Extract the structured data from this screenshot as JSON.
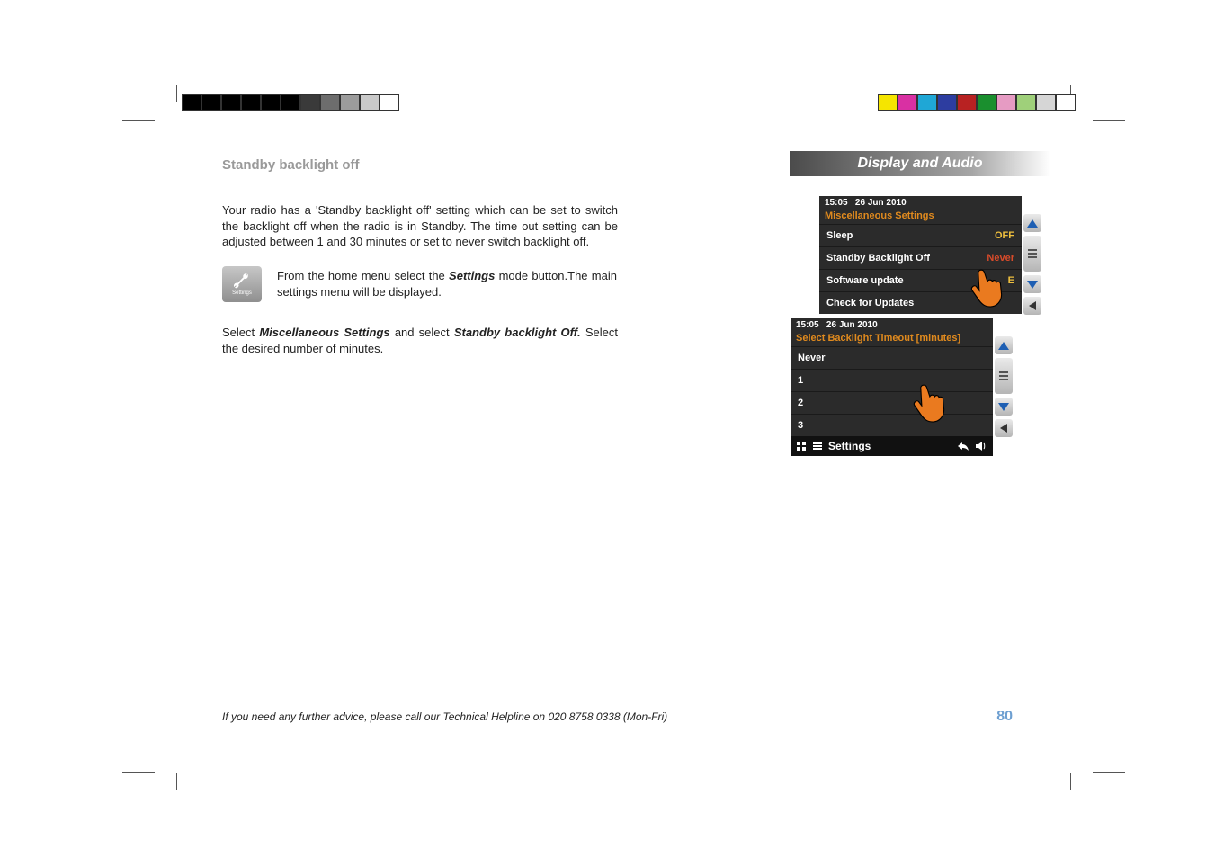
{
  "regbars": {
    "left_colors": [
      "#000000",
      "#000000",
      "#000000",
      "#000000",
      "#000000",
      "#000000",
      "#3a3a3a",
      "#6d6d6d",
      "#9c9c9c",
      "#c9c9c9",
      "#ffffff"
    ],
    "right_colors": [
      "#f5e500",
      "#d930a3",
      "#1fa7d6",
      "#2d3da0",
      "#b82222",
      "#1a8f2e",
      "#e69bc3",
      "#9fd07a",
      "#d6d6d6",
      "#ffffff"
    ]
  },
  "section_title": "Standby backlight off",
  "banner_title": "Display and Audio",
  "paragraphs": {
    "p1": "Your radio has a 'Standby backlight off' setting which can be set to switch the backlight off when the radio is in Standby. The time out setting can be adjusted between 1 and 30 minutes or set to never switch backlight off.",
    "p2_pre": "From the home menu select the ",
    "p2_bold": "Settings",
    "p2_post": " mode button.The main settings menu will be displayed.",
    "p3_pre": "Select ",
    "p3_b1": "Miscellaneous Settings",
    "p3_mid": " and select ",
    "p3_b2": "Standby backlight Off.",
    "p3_post": " Select the desired number of minutes."
  },
  "settings_icon_label": "Settings",
  "screen1": {
    "time": "15:05",
    "date": "26 Jun 2010",
    "heading": "Miscellaneous Settings",
    "rows": [
      {
        "label": "Sleep",
        "value": "OFF",
        "value_class": "val"
      },
      {
        "label": "Standby Backlight Off",
        "value": "Never",
        "value_class": "val never"
      },
      {
        "label": "Software update",
        "value": "E",
        "value_class": "val"
      },
      {
        "label": "Check for Updates",
        "value": "",
        "value_class": ""
      }
    ]
  },
  "screen2": {
    "time": "15:05",
    "date": "26 Jun 2010",
    "heading": "Select Backlight Timeout [minutes]",
    "rows": [
      {
        "label": "Never"
      },
      {
        "label": "1"
      },
      {
        "label": "2"
      },
      {
        "label": "3"
      }
    ],
    "footer_label": "Settings"
  },
  "helpline": "If you need any further advice, please call our Technical Helpline on 020 8758 0338 (Mon-Fri)",
  "page_number": "80"
}
